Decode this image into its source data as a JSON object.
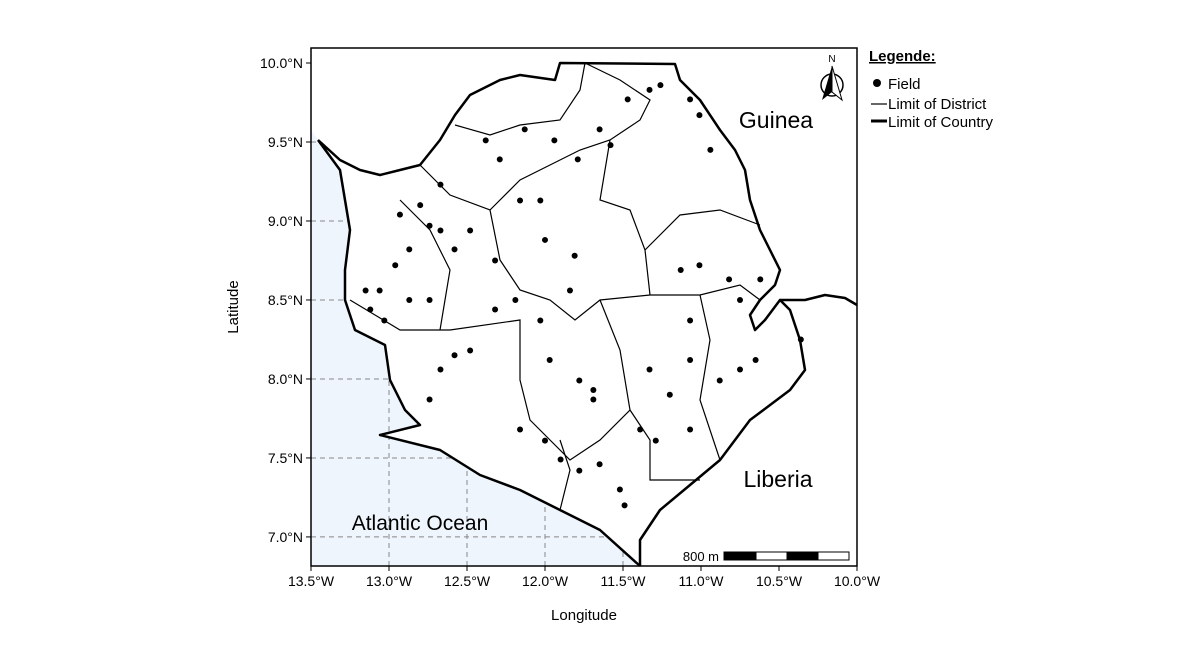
{
  "map": {
    "xlabel": "Longitude",
    "ylabel": "Latitude",
    "xlim": [
      -13.5,
      -10.0
    ],
    "ylim": [
      6.816,
      10.095
    ],
    "xticks": [
      {
        "value": -13.5,
        "label": "13.5°W"
      },
      {
        "value": -13.0,
        "label": "13.0°W"
      },
      {
        "value": -12.5,
        "label": "12.5°W"
      },
      {
        "value": -12.0,
        "label": "12.0°W"
      },
      {
        "value": -11.5,
        "label": "11.5°W"
      },
      {
        "value": -11.0,
        "label": "11.0°W"
      },
      {
        "value": -10.5,
        "label": "10.5°W"
      },
      {
        "value": -10.0,
        "label": "10.0°W"
      }
    ],
    "yticks": [
      {
        "value": 7.0,
        "label": "7.0°N"
      },
      {
        "value": 7.5,
        "label": "7.5°N"
      },
      {
        "value": 8.0,
        "label": "8.0°N"
      },
      {
        "value": 8.5,
        "label": "8.5°N"
      },
      {
        "value": 9.0,
        "label": "9.0°N"
      },
      {
        "value": 9.5,
        "label": "9.5°N"
      },
      {
        "value": 10.0,
        "label": "10.0°N"
      }
    ],
    "legend": {
      "title": "Legende:",
      "items": [
        "Field",
        "Limit of District",
        "Limit of Country"
      ]
    },
    "places": {
      "guinea": "Guinea",
      "liberia": "Liberia",
      "ocean": "Atlantic Ocean"
    },
    "north": "N",
    "scale_bar": "800 m",
    "fields": {
      "lon": [
        -11.33,
        -11.26,
        -11.07,
        -11.01,
        -10.94,
        -11.47,
        -11.65,
        -11.58,
        -11.79,
        -11.94,
        -12.13,
        -12.29,
        -12.38,
        -12.67,
        -12.8,
        -12.67,
        -12.87,
        -12.96,
        -13.06,
        -13.12,
        -13.03,
        -12.87,
        -12.74,
        -12.58,
        -12.48,
        -12.32,
        -12.16,
        -12.03,
        -12.0,
        -11.81,
        -11.84,
        -12.03,
        -12.19,
        -12.32,
        -12.48,
        -12.58,
        -12.67,
        -12.74,
        -12.16,
        -12.0,
        -11.9,
        -11.78,
        -11.65,
        -11.52,
        -11.49,
        -11.39,
        -11.29,
        -11.07,
        -11.2,
        -11.33,
        -11.07,
        -10.88,
        -10.75,
        -10.65,
        -10.36,
        -11.13,
        -11.01,
        -10.82,
        -10.62,
        -10.75,
        -11.07,
        -11.78,
        -11.69,
        -11.69,
        -11.97,
        -12.74,
        -12.93,
        -13.15
      ],
      "lat": [
        9.83,
        9.86,
        9.77,
        9.67,
        9.45,
        9.77,
        9.58,
        9.48,
        9.39,
        9.51,
        9.58,
        9.39,
        9.51,
        9.23,
        9.1,
        8.94,
        8.82,
        8.72,
        8.56,
        8.44,
        8.37,
        8.5,
        8.5,
        8.82,
        8.94,
        8.75,
        9.13,
        9.13,
        8.88,
        8.78,
        8.56,
        8.37,
        8.5,
        8.44,
        8.18,
        8.15,
        8.06,
        7.87,
        7.68,
        7.61,
        7.49,
        7.42,
        7.46,
        7.3,
        7.2,
        7.68,
        7.61,
        7.68,
        7.9,
        8.06,
        8.12,
        7.99,
        8.06,
        8.12,
        8.25,
        8.69,
        8.72,
        8.63,
        8.63,
        8.5,
        8.37,
        7.99,
        7.93,
        7.87,
        8.12,
        8.97,
        9.04,
        8.56
      ]
    }
  }
}
